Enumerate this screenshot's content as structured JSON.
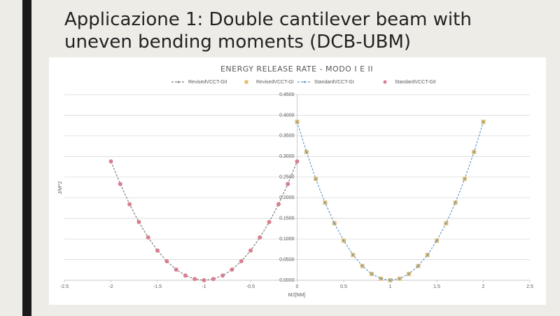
{
  "slide": {
    "title": [
      "Applicazione 1: Double cantilever beam with",
      "uneven bending moments (DCB-UBM)"
    ]
  },
  "chart_data": {
    "type": "scatter",
    "title": "ENERGY RELEASE RATE - MODO I E II",
    "xlabel": "M2[NM]",
    "ylabel": "J/M^2",
    "xlim": [
      -2.5,
      2.5
    ],
    "xticks": [
      -2.5,
      -2,
      -1.5,
      -1,
      -0.5,
      0,
      0.5,
      1,
      1.5,
      2,
      2.5
    ],
    "ylim": [
      0,
      0.45
    ],
    "yticks": [
      {
        "value": 0,
        "label": "0.0000"
      },
      {
        "value": 0.05,
        "label": "0.0500"
      },
      {
        "value": 0.1,
        "label": "0.1000"
      },
      {
        "value": 0.15,
        "label": "0.1500"
      },
      {
        "value": 0.2,
        "label": "0.2000"
      },
      {
        "value": 0.25,
        "label": "0.2500"
      },
      {
        "value": 0.3,
        "label": "0.3000"
      },
      {
        "value": 0.35,
        "label": "0.3500"
      },
      {
        "value": 0.4,
        "label": "0.4000"
      },
      {
        "value": 0.45,
        "label": "0.4500"
      }
    ],
    "grid": true,
    "legend": "top",
    "series": [
      {
        "name": "RevisedVCCT-GII",
        "color": "#7f7f7f",
        "mode": "lines+markers",
        "marker": "diamond",
        "x": [
          -2,
          -1.9,
          -1.8,
          -1.7,
          -1.6,
          -1.5,
          -1.4,
          -1.3,
          -1.2,
          -1.1,
          -1,
          -0.9,
          -0.8,
          -0.7,
          -0.6,
          -0.5,
          -0.4,
          -0.3,
          -0.2,
          -0.1,
          0
        ],
        "values": [
          0.288,
          0.2333,
          0.1843,
          0.1411,
          0.1037,
          0.072,
          0.0461,
          0.0259,
          0.0115,
          0.0029,
          0,
          0.0029,
          0.0115,
          0.0259,
          0.0461,
          0.072,
          0.1037,
          0.1411,
          0.1843,
          0.2333,
          0.288
        ]
      },
      {
        "name": "RevisedVCCT-GI",
        "color": "#e6bf6e",
        "mode": "markers",
        "marker": "square",
        "x": [
          0,
          0.1,
          0.2,
          0.3,
          0.4,
          0.5,
          0.6,
          0.7,
          0.8,
          0.9,
          1,
          1.1,
          1.2,
          1.3,
          1.4,
          1.5,
          1.6,
          1.7,
          1.8,
          1.9,
          2
        ],
        "values": [
          0.384,
          0.311,
          0.2458,
          0.1882,
          0.1382,
          0.096,
          0.0614,
          0.0346,
          0.0154,
          0.0038,
          0,
          0.0038,
          0.0154,
          0.0346,
          0.0614,
          0.096,
          0.1382,
          0.1882,
          0.2458,
          0.311,
          0.384
        ]
      },
      {
        "name": "StandardVCCT-GI",
        "color": "#6a9bc9",
        "mode": "lines+markers",
        "marker": "diamond",
        "x": [
          0,
          0.1,
          0.2,
          0.3,
          0.4,
          0.5,
          0.6,
          0.7,
          0.8,
          0.9,
          1,
          1.1,
          1.2,
          1.3,
          1.4,
          1.5,
          1.6,
          1.7,
          1.8,
          1.9,
          2
        ],
        "values": [
          0.384,
          0.311,
          0.2458,
          0.1882,
          0.1382,
          0.096,
          0.0614,
          0.0346,
          0.0154,
          0.0038,
          0,
          0.0038,
          0.0154,
          0.0346,
          0.0614,
          0.096,
          0.1382,
          0.1882,
          0.2458,
          0.311,
          0.384
        ]
      },
      {
        "name": "StandardVCCT-GII",
        "color": "#d77f8f",
        "mode": "markers",
        "marker": "circle",
        "x": [
          -2,
          -1.9,
          -1.8,
          -1.7,
          -1.6,
          -1.5,
          -1.4,
          -1.3,
          -1.2,
          -1.1,
          -1,
          -0.9,
          -0.8,
          -0.7,
          -0.6,
          -0.5,
          -0.4,
          -0.3,
          -0.2,
          -0.1,
          0
        ],
        "values": [
          0.288,
          0.2333,
          0.1843,
          0.1411,
          0.1037,
          0.072,
          0.0461,
          0.0259,
          0.0115,
          0.0029,
          0,
          0.0029,
          0.0115,
          0.0259,
          0.0461,
          0.072,
          0.1037,
          0.1411,
          0.1843,
          0.2333,
          0.288
        ]
      }
    ]
  }
}
